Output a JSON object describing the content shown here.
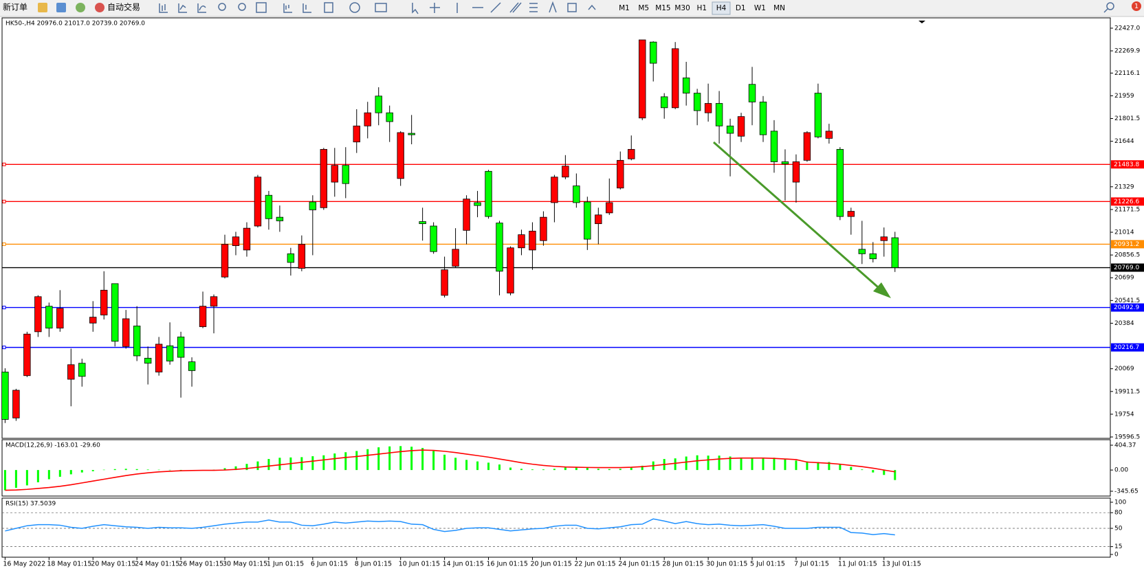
{
  "toolbar": {
    "new_order": "新订单",
    "auto_trading": "自动交易",
    "timeframes": [
      "M1",
      "M5",
      "M15",
      "M30",
      "H1",
      "H4",
      "D1",
      "W1",
      "MN"
    ],
    "badge": "1"
  },
  "chart_data": [
    {
      "type": "candlestick",
      "title": "HK50-,H4 20976.0 21017.0 20739.0 20769.0",
      "categories": [
        "16 May 2022",
        null,
        null,
        null,
        "18 May 01:15",
        null,
        null,
        null,
        "20 May 01:15",
        null,
        null,
        null,
        "24 May 01:15",
        null,
        null,
        null,
        "26 May 01:15",
        null,
        null,
        null,
        "30 May 01:15",
        null,
        null,
        null,
        "1 Jun 01:15",
        null,
        null,
        null,
        "6 Jun 01:15",
        null,
        null,
        null,
        "8 Jun 01:15",
        null,
        null,
        null,
        "10 Jun 01:15",
        null,
        null,
        null,
        "14 Jun 01:15",
        null,
        null,
        null,
        "16 Jun 01:15",
        null,
        null,
        null,
        "20 Jun 01:15",
        null,
        null,
        null,
        "22 Jun 01:15",
        null,
        null,
        null,
        "24 Jun 01:15",
        null,
        null,
        null,
        "28 Jun 01:15",
        null,
        null,
        null,
        "30 Jun 01:15",
        null,
        null,
        null,
        "5 Jul 01:15",
        null,
        null,
        null,
        "7 Jul 01:15",
        null,
        null,
        null,
        "11 Jul 01:15",
        null,
        null,
        null,
        "13 Jul 01:15",
        null
      ],
      "open": [
        20046,
        19728,
        20021,
        20325,
        20502,
        20350,
        19996,
        20107,
        20385,
        20441,
        20658,
        20223,
        20365,
        20142,
        20046,
        20228,
        20289,
        20117,
        20360,
        20502,
        20704,
        20921,
        20891,
        21057,
        21270,
        21118,
        20865,
        20764,
        21224,
        21184,
        21361,
        21477,
        21639,
        21750,
        21957,
        21841,
        21386,
        21699,
        21088,
        21057,
        20577,
        20779,
        21027,
        21219,
        21436,
        21078,
        20593,
        20906,
        20891,
        20956,
        21219,
        21396,
        21335,
        21224,
        21073,
        21148,
        21320,
        21522,
        21805,
        22331,
        21952,
        21876,
        22083,
        21977,
        21841,
        21906,
        21750,
        21679,
        22038,
        21916,
        21714,
        21502,
        21361,
        21512,
        21977,
        21664,
        21588,
        21123,
        20896,
        20865,
        20956,
        20976
      ],
      "high": [
        20072,
        19930,
        20325,
        20578,
        20527,
        20613,
        20208,
        20138,
        20537,
        20744,
        20658,
        20476,
        20502,
        20223,
        20289,
        20390,
        20325,
        20148,
        20603,
        20583,
        20997,
        21017,
        21083,
        21411,
        21300,
        21199,
        20906,
        20992,
        21270,
        21598,
        21598,
        21603,
        21866,
        21917,
        22018,
        21891,
        21714,
        21826,
        21184,
        21083,
        20845,
        21042,
        21270,
        21300,
        21446,
        21093,
        20916,
        21032,
        21083,
        21159,
        21411,
        21548,
        21421,
        21260,
        21184,
        21386,
        21573,
        21684,
        22346,
        22336,
        21977,
        22331,
        22194,
        22007,
        22043,
        21992,
        21800,
        21841,
        22159,
        21957,
        21790,
        21588,
        21553,
        21714,
        22043,
        21765,
        21603,
        21184,
        21093,
        20946,
        21047,
        21017
      ],
      "low": [
        19693,
        19708,
        20011,
        20289,
        20289,
        20325,
        19809,
        19945,
        20325,
        20410,
        20223,
        20208,
        20122,
        19960,
        20021,
        20097,
        19869,
        19945,
        20350,
        20314,
        20694,
        20855,
        20845,
        21047,
        21032,
        21017,
        20714,
        20744,
        20855,
        21169,
        21260,
        21250,
        21563,
        21664,
        21755,
        21639,
        21335,
        21623,
        20956,
        20865,
        20562,
        20769,
        20931,
        21118,
        21108,
        20577,
        20577,
        20855,
        20754,
        20921,
        21083,
        21381,
        21184,
        20891,
        20931,
        21134,
        21310,
        21512,
        21790,
        22058,
        21800,
        21866,
        21891,
        21755,
        21780,
        21628,
        21401,
        21639,
        21755,
        21639,
        21426,
        21234,
        21219,
        21502,
        21664,
        21628,
        21098,
        20997,
        20794,
        20805,
        20845,
        20739
      ],
      "close": [
        19718,
        19920,
        20309,
        20568,
        20350,
        20487,
        20097,
        20016,
        20426,
        20613,
        20259,
        20415,
        20158,
        20107,
        20239,
        20122,
        20148,
        20056,
        20502,
        20568,
        20931,
        20982,
        21042,
        21396,
        21108,
        21093,
        20805,
        20931,
        21169,
        21588,
        21477,
        21351,
        21750,
        21841,
        21841,
        21780,
        21704,
        21689,
        21073,
        20880,
        20754,
        20896,
        21244,
        21199,
        21123,
        20744,
        20906,
        20997,
        21022,
        21118,
        21396,
        21472,
        21219,
        20966,
        21134,
        21219,
        21512,
        21588,
        22346,
        22184,
        21876,
        22285,
        21977,
        21856,
        21906,
        21750,
        21699,
        21815,
        21916,
        21689,
        21502,
        21487,
        21502,
        21704,
        21674,
        21714,
        21123,
        21159,
        20865,
        20830,
        20982,
        20769
      ],
      "up_color": "#ff0000",
      "down_color": "#00ff00",
      "ylim": [
        19596.5,
        22427.0
      ],
      "yticks": [
        {
          "value": 22427.0,
          "label": "22427.0"
        },
        22269.9,
        22116.1,
        21959,
        21801.5,
        21644,
        21329,
        21171.5,
        21014,
        20856.5,
        20699,
        20541.5,
        20384,
        20069,
        19911.5,
        19754,
        19596.5
      ],
      "hlines": [
        {
          "value": 21483.8,
          "color": "#ff0000"
        },
        {
          "value": 21226.6,
          "color": "#ff0000"
        },
        {
          "value": 20931.2,
          "color": "#ff8c00"
        },
        {
          "value": 20769,
          "label": "20769.0",
          "color": "#000000"
        },
        {
          "value": 20492.9,
          "color": "#0000ff"
        },
        {
          "value": 20216.7,
          "color": "#0000ff"
        }
      ]
    },
    {
      "type": "bar",
      "title": "MACD(12,26,9) -163.01 -29.60",
      "values": [
        -330,
        -290,
        -250,
        -200,
        -150,
        -110,
        -70,
        -40,
        -20,
        5,
        15,
        20,
        15,
        8,
        5,
        3,
        2,
        -5,
        -8,
        5,
        30,
        60,
        100,
        140,
        180,
        200,
        205,
        210,
        225,
        240,
        270,
        290,
        310,
        340,
        370,
        385,
        390,
        380,
        360,
        310,
        250,
        200,
        165,
        140,
        120,
        90,
        40,
        20,
        10,
        10,
        20,
        40,
        50,
        40,
        20,
        15,
        20,
        45,
        70,
        140,
        180,
        190,
        220,
        240,
        235,
        235,
        220,
        200,
        190,
        200,
        200,
        180,
        155,
        140,
        130,
        130,
        100,
        50,
        10,
        -40,
        -80,
        -163.01
      ],
      "color": "#00ff00",
      "signal": {
        "color": "#ff0000",
        "values": [
          -330,
          -325,
          -315,
          -300,
          -285,
          -265,
          -240,
          -210,
          -180,
          -150,
          -120,
          -90,
          -65,
          -45,
          -30,
          -20,
          -12,
          -8,
          -5,
          -5,
          0,
          10,
          25,
          45,
          65,
          85,
          105,
          125,
          145,
          165,
          185,
          205,
          220,
          240,
          260,
          280,
          300,
          315,
          325,
          320,
          305,
          285,
          260,
          235,
          210,
          180,
          150,
          120,
          95,
          75,
          60,
          50,
          45,
          42,
          40,
          40,
          40,
          45,
          55,
          70,
          90,
          110,
          130,
          150,
          165,
          180,
          190,
          195,
          195,
          195,
          190,
          180,
          170,
          130,
          120,
          110,
          95,
          75,
          55,
          30,
          0,
          -29.6
        ]
      },
      "ylim": [
        -345.65,
        404.37
      ],
      "yticks": [
        404.37,
        {
          "value": 0,
          "label": "0.00"
        },
        -345.65
      ]
    },
    {
      "type": "line",
      "title": "RSI(15) 37.5039",
      "values": [
        45,
        50,
        55,
        57,
        57,
        56,
        52,
        50,
        54,
        57,
        55,
        53,
        52,
        50,
        52,
        51,
        51,
        50,
        52,
        55,
        58,
        60,
        62,
        62,
        66,
        62,
        62,
        56,
        55,
        58,
        62,
        60,
        62,
        64,
        63,
        64,
        63,
        58,
        57,
        48,
        44,
        46,
        50,
        51,
        51,
        48,
        45,
        47,
        49,
        50,
        54,
        56,
        56,
        50,
        49,
        51,
        53,
        57,
        58,
        68,
        64,
        59,
        63,
        59,
        57,
        58,
        56,
        55,
        56,
        57,
        54,
        50,
        50,
        50,
        52,
        52,
        52,
        42,
        41,
        38,
        40,
        37.5039
      ],
      "color": "#1e90ff",
      "ylim": [
        0,
        100
      ],
      "yticks": [
        100,
        80,
        50,
        15,
        0
      ]
    }
  ]
}
